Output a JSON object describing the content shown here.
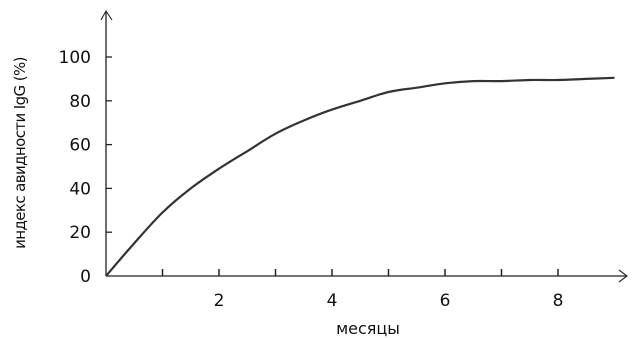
{
  "chart_data": {
    "type": "line",
    "xlabel": "месяцы",
    "ylabel": "индекс авидности IgG (%)",
    "xlim": [
      0,
      9.2
    ],
    "ylim": [
      0,
      100
    ],
    "x_ticks_labeled": [
      2,
      4,
      6,
      8
    ],
    "x_ticks_minor": [
      1,
      3,
      5,
      7
    ],
    "y_ticks": [
      0,
      20,
      40,
      60,
      80,
      100
    ],
    "grid": false,
    "series": [
      {
        "x": [
          0,
          0.5,
          1,
          1.5,
          2,
          2.5,
          3,
          3.5,
          4,
          4.5,
          5,
          5.5,
          6,
          6.5,
          7,
          7.5,
          8,
          8.5,
          9
        ],
        "y": [
          0,
          15,
          29,
          40,
          49,
          57,
          65,
          71,
          76,
          80,
          84,
          86,
          88,
          89,
          89,
          89.5,
          89.5,
          90,
          90.5
        ],
        "color": "#333333"
      }
    ]
  }
}
